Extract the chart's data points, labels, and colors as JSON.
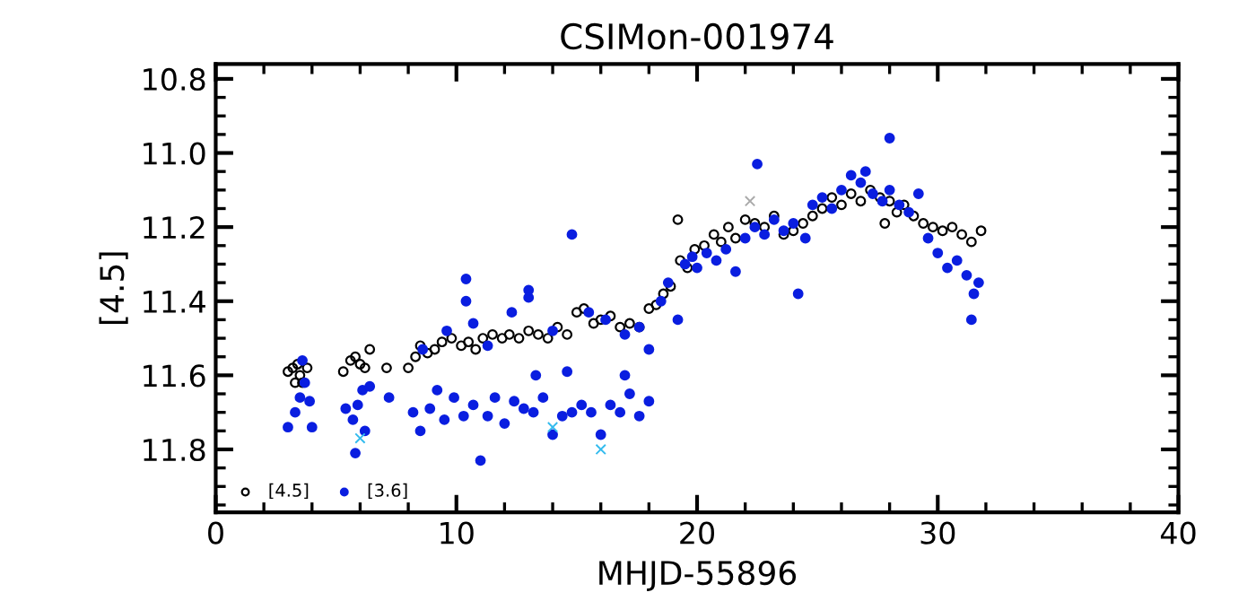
{
  "chart_data": {
    "type": "scatter",
    "title": "CSIMon-001974",
    "xlabel": "MHJD-55896",
    "ylabel": "[4.5]",
    "xlim": [
      0,
      40
    ],
    "xticks": [
      0,
      10,
      20,
      30,
      40
    ],
    "ylim": [
      11.97,
      10.76
    ],
    "yticks": [
      {
        "value": 10.8,
        "label": "10.8"
      },
      {
        "value": 11.0,
        "label": "11.0"
      },
      {
        "value": 11.2,
        "label": "11.2"
      },
      {
        "value": 11.4,
        "label": "11.4"
      },
      {
        "value": 11.6,
        "label": "11.6"
      },
      {
        "value": 11.8,
        "label": "11.8"
      }
    ],
    "grid": false,
    "legend": "bottom left",
    "series": [
      {
        "name": "[4.5]",
        "color": "#000000",
        "marker": "circle",
        "x": [
          3.0,
          3.2,
          3.4,
          3.5,
          3.6,
          3.8,
          3.3,
          5.3,
          5.6,
          5.8,
          6.0,
          6.2,
          6.4,
          7.1,
          8.0,
          8.3,
          8.5,
          8.8,
          9.1,
          9.4,
          9.8,
          10.2,
          10.5,
          10.8,
          11.1,
          11.5,
          11.9,
          12.2,
          12.6,
          13.0,
          13.4,
          13.8,
          14.2,
          14.6,
          15.0,
          15.3,
          15.7,
          16.0,
          16.4,
          16.8,
          17.2,
          17.6,
          18.0,
          18.3,
          18.6,
          18.9,
          19.3,
          19.6,
          19.9,
          20.3,
          20.7,
          21.0,
          21.3,
          21.6,
          22.0,
          22.4,
          22.8,
          23.2,
          23.6,
          24.0,
          24.4,
          24.8,
          25.2,
          25.6,
          26.0,
          26.4,
          26.8,
          27.2,
          27.6,
          28.0,
          28.3,
          28.6,
          29.0,
          29.4,
          29.8,
          30.2,
          30.6,
          31.0,
          31.4,
          31.8,
          19.2,
          27.8
        ],
        "values": [
          11.59,
          11.58,
          11.57,
          11.6,
          11.62,
          11.58,
          11.62,
          11.59,
          11.56,
          11.55,
          11.57,
          11.58,
          11.53,
          11.58,
          11.58,
          11.55,
          11.52,
          11.54,
          11.53,
          11.51,
          11.5,
          11.52,
          11.51,
          11.53,
          11.5,
          11.49,
          11.5,
          11.49,
          11.5,
          11.48,
          11.49,
          11.5,
          11.47,
          11.49,
          11.43,
          11.42,
          11.46,
          11.45,
          11.44,
          11.47,
          11.46,
          11.47,
          11.42,
          11.41,
          11.38,
          11.36,
          11.29,
          11.31,
          11.26,
          11.25,
          11.22,
          11.24,
          11.2,
          11.23,
          11.18,
          11.19,
          11.2,
          11.17,
          11.22,
          11.21,
          11.19,
          11.17,
          11.15,
          11.12,
          11.14,
          11.11,
          11.13,
          11.1,
          11.12,
          11.13,
          11.16,
          11.14,
          11.17,
          11.19,
          11.2,
          11.21,
          11.2,
          11.22,
          11.24,
          11.21,
          11.18,
          11.19
        ]
      },
      {
        "name": "[3.6]",
        "color": "#0a1ee0",
        "marker": "circle",
        "x": [
          3.0,
          3.3,
          3.5,
          3.7,
          3.9,
          4.0,
          3.6,
          5.4,
          5.7,
          5.9,
          6.1,
          6.2,
          6.4,
          5.8,
          7.2,
          8.2,
          8.5,
          8.9,
          9.2,
          9.5,
          9.9,
          10.3,
          10.7,
          11.0,
          11.3,
          11.6,
          12.0,
          12.4,
          12.8,
          13.2,
          13.6,
          14.0,
          14.4,
          14.8,
          15.2,
          15.6,
          16.0,
          16.4,
          16.8,
          17.2,
          17.6,
          18.0,
          13.3,
          14.6,
          17.0,
          8.6,
          9.6,
          10.4,
          10.7,
          11.3,
          12.3,
          13.0,
          14.0,
          14.8,
          15.5,
          16.2,
          17.0,
          17.6,
          18.0,
          18.5,
          18.8,
          19.2,
          19.5,
          19.8,
          20.0,
          20.4,
          20.8,
          21.2,
          21.6,
          22.0,
          22.4,
          22.8,
          23.2,
          23.6,
          24.0,
          24.5,
          24.8,
          25.2,
          25.6,
          26.0,
          26.4,
          26.8,
          27.0,
          27.3,
          27.7,
          28.0,
          28.4,
          28.8,
          29.2,
          29.6,
          30.0,
          30.4,
          30.8,
          31.2,
          31.5,
          31.7,
          31.4,
          22.5,
          28.0,
          24.2,
          10.4,
          13.0
        ],
        "values": [
          11.74,
          11.7,
          11.66,
          11.62,
          11.67,
          11.74,
          11.56,
          11.69,
          11.72,
          11.68,
          11.64,
          11.75,
          11.63,
          11.81,
          11.66,
          11.7,
          11.75,
          11.69,
          11.64,
          11.72,
          11.66,
          11.71,
          11.68,
          11.83,
          11.71,
          11.66,
          11.73,
          11.67,
          11.69,
          11.7,
          11.66,
          11.76,
          11.71,
          11.7,
          11.68,
          11.7,
          11.76,
          11.68,
          11.7,
          11.65,
          11.71,
          11.67,
          11.6,
          11.59,
          11.6,
          11.53,
          11.48,
          11.4,
          11.46,
          11.52,
          11.43,
          11.39,
          11.48,
          11.22,
          11.43,
          11.45,
          11.49,
          11.47,
          11.53,
          11.4,
          11.35,
          11.45,
          11.3,
          11.28,
          11.31,
          11.27,
          11.29,
          11.26,
          11.32,
          11.23,
          11.2,
          11.22,
          11.18,
          11.21,
          11.19,
          11.23,
          11.14,
          11.12,
          11.15,
          11.1,
          11.06,
          11.08,
          11.05,
          11.11,
          11.13,
          11.1,
          11.14,
          11.16,
          11.11,
          11.23,
          11.27,
          11.31,
          11.29,
          11.33,
          11.38,
          11.35,
          11.45,
          11.03,
          10.96,
          11.38,
          11.34,
          11.37
        ]
      },
      {
        "color": "#33bbee",
        "marker": "cross",
        "x": [
          6.0,
          14.0,
          16.0
        ],
        "values": [
          11.77,
          11.74,
          11.8
        ]
      },
      {
        "color": "#aaaaaa",
        "marker": "cross",
        "x": [
          22.2
        ],
        "values": [
          11.13
        ]
      }
    ]
  }
}
